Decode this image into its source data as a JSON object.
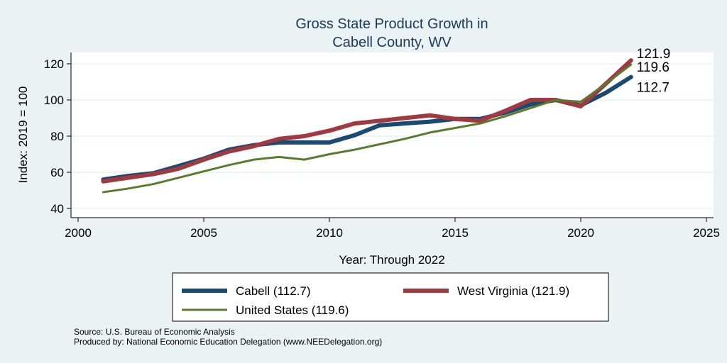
{
  "chart_data": {
    "type": "line",
    "title": [
      "Gross State Product Growth in",
      "Cabell County, WV"
    ],
    "xlabel": "Year: Through 2022",
    "ylabel": "Index: 2019 = 100",
    "xlim": [
      2000,
      2025
    ],
    "ylim": [
      40,
      126
    ],
    "xticks": [
      2000,
      2005,
      2010,
      2015,
      2020,
      2025
    ],
    "yticks": [
      40,
      60,
      80,
      100,
      120
    ],
    "grid": true,
    "legend_position": "bottom",
    "x": [
      2001,
      2002,
      2003,
      2004,
      2005,
      2006,
      2007,
      2008,
      2009,
      2010,
      2011,
      2012,
      2013,
      2014,
      2015,
      2016,
      2017,
      2018,
      2019,
      2020,
      2021,
      2022
    ],
    "series": [
      {
        "name": "Cabell  (112.7)",
        "color": "#1a4a72",
        "width": 6,
        "end_label": "112.7",
        "values": [
          56,
          58,
          59.5,
          63.5,
          67.5,
          72.5,
          75,
          76.5,
          76.5,
          76.5,
          80.5,
          86,
          87,
          88,
          89.5,
          89.5,
          93,
          97.5,
          100,
          97,
          104,
          112.7
        ]
      },
      {
        "name": "West Virginia (121.9)",
        "color": "#a13a40",
        "width": 6,
        "end_label": "121.9",
        "values": [
          55,
          57,
          59,
          62,
          67,
          71.5,
          74.5,
          78.5,
          80,
          83,
          87,
          88.5,
          90,
          91.5,
          89.5,
          88.5,
          94,
          100,
          100,
          96.5,
          109,
          121.9
        ]
      },
      {
        "name": "United States (119.6)",
        "color": "#5a7a2c",
        "width": 3,
        "end_label": "119.6",
        "values": [
          49,
          51,
          53.5,
          57,
          60.5,
          64,
          67,
          68.5,
          67,
          70,
          72.5,
          75.5,
          78.5,
          82,
          84.5,
          87,
          91,
          95.5,
          100,
          99,
          109,
          119.6
        ]
      }
    ]
  },
  "source_lines": [
    "Source: U.S. Bureau of Economic Analysis",
    "Produced by: National Economic Education Delegation (www.NEEDelegation.org)"
  ]
}
